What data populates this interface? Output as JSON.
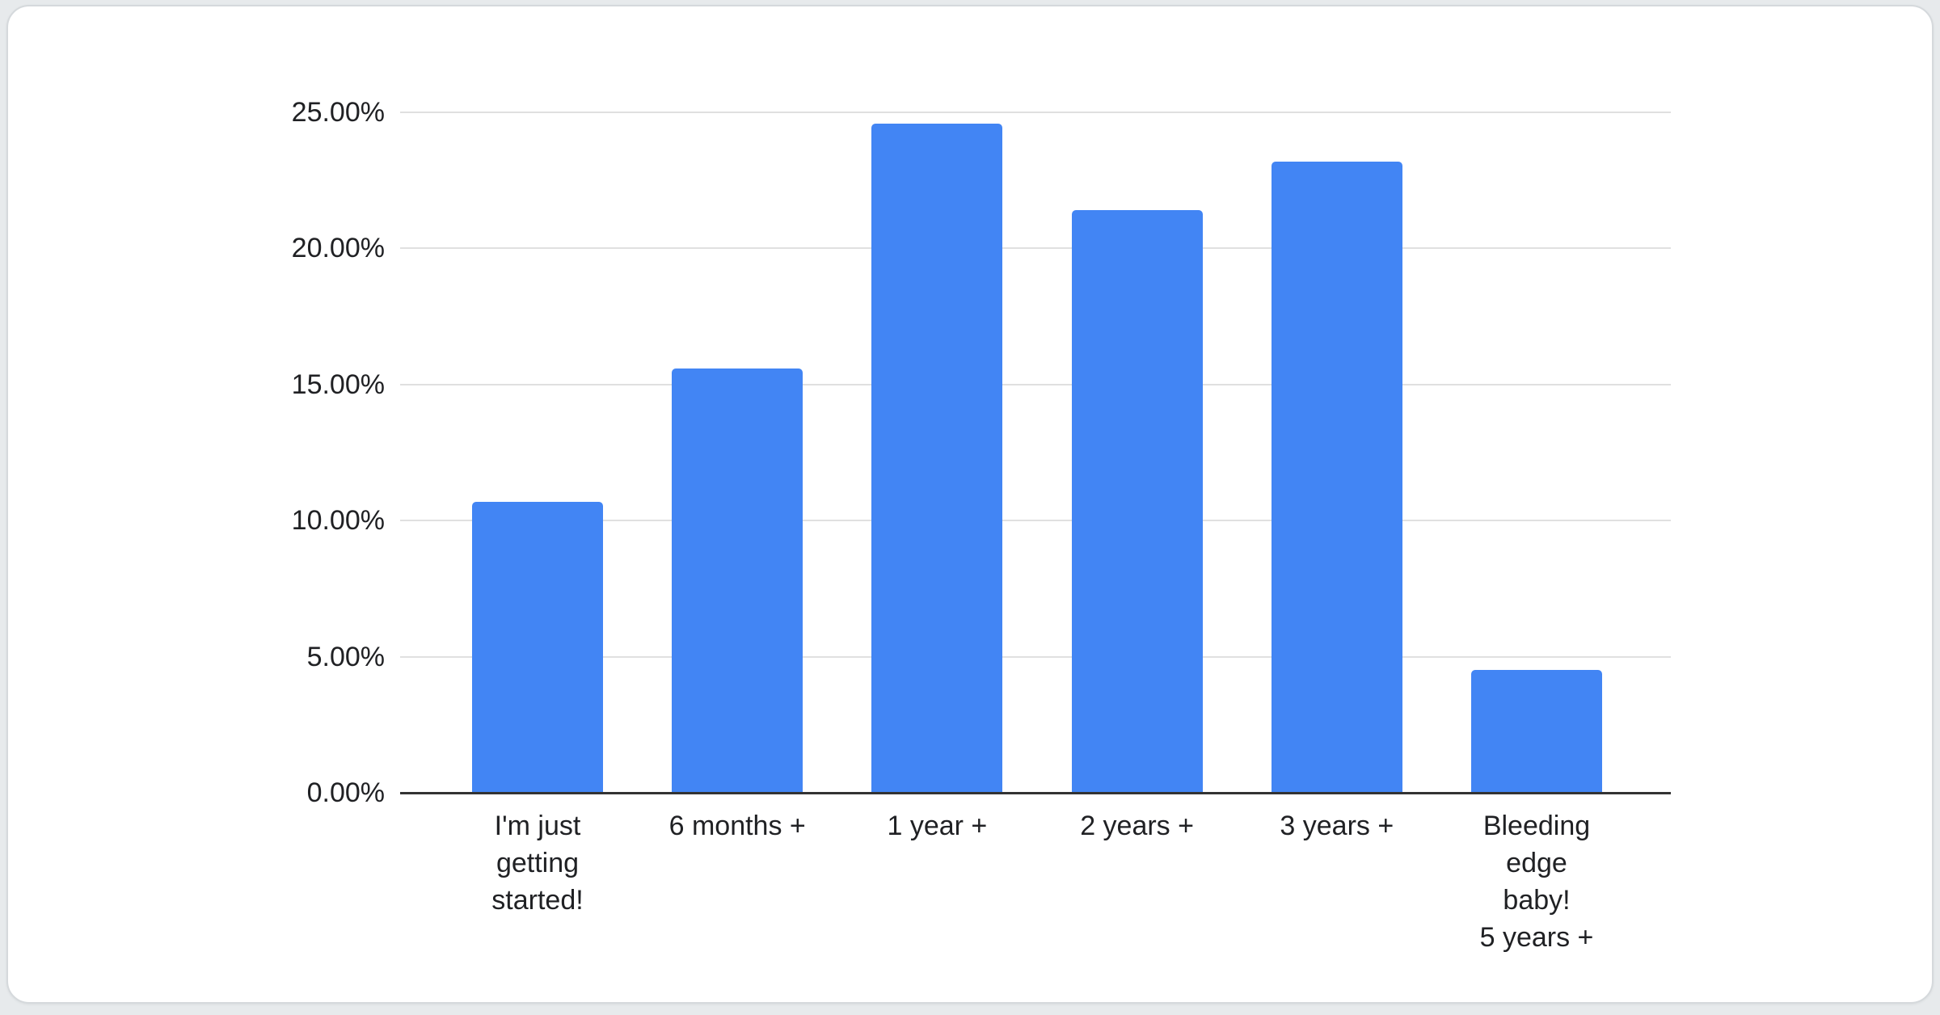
{
  "card": {
    "background": "#ffffff",
    "border_color": "#d5d9dc"
  },
  "chart_data": {
    "type": "bar",
    "title": "",
    "categories": [
      "I'm just getting started!",
      "6 months +",
      "1 year +",
      "2 years +",
      "3 years +",
      "Bleeding edge baby! 5 years +"
    ],
    "x_tick_display": [
      "I'm just\ngetting\nstarted!",
      "6 months +",
      "1 year +",
      "2 years +",
      "3 years +",
      "Bleeding\nedge baby!\n5 years +"
    ],
    "values": [
      10.7,
      15.6,
      24.6,
      21.4,
      23.2,
      4.5
    ],
    "y_ticks": [
      "25.00%",
      "20.00%",
      "15.00%",
      "10.00%",
      "5.00%",
      "0.00%"
    ],
    "ylim": [
      0,
      25
    ],
    "xlabel": "",
    "ylabel": "",
    "grid": true,
    "legend": "none",
    "bar_color": "#4285f4",
    "gridline_color": "#e0e0e0",
    "axis_line_color": "#333333",
    "text_color": "#202124"
  }
}
